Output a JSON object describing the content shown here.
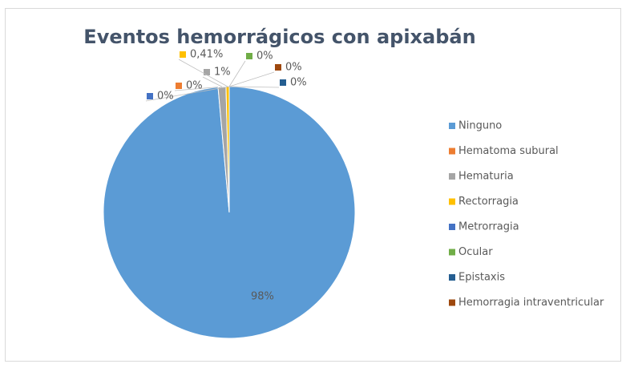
{
  "chart_data": {
    "type": "pie",
    "title": "Eventos hemorrágicos con apixabán",
    "categories": [
      "Ninguno",
      "Hematoma subural",
      "Hematuria",
      "Rectorragia",
      "Metrorragia",
      "Ocular",
      "Epistaxis",
      "Hemorragia intraventricular"
    ],
    "values": [
      98,
      0,
      1,
      0.41,
      0,
      0,
      0,
      0
    ],
    "value_labels": [
      "98%",
      "0%",
      "1%",
      "0,41%",
      "0%",
      "0%",
      "0%",
      "0%"
    ],
    "colors": [
      "#5b9bd5",
      "#ed7d31",
      "#a5a5a5",
      "#ffc000",
      "#4472c4",
      "#70ad47",
      "#255e91",
      "#9e480e"
    ],
    "legend": "right"
  }
}
